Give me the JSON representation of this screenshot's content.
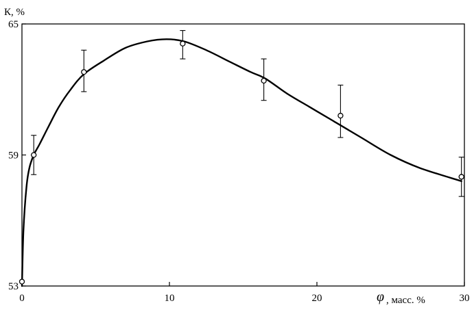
{
  "chart_data": {
    "type": "line",
    "title": "",
    "ylabel": "К, %",
    "xlabel": "φ, масс. %",
    "xlabel_symbol": "φ",
    "xlabel_suffix": ", масс. %",
    "xlim": [
      0,
      30
    ],
    "ylim": [
      53,
      65
    ],
    "x_ticks": [
      0,
      10,
      20,
      30
    ],
    "x_tick_labels": [
      "0",
      "10",
      "20",
      "30"
    ],
    "y_ticks": [
      53,
      59,
      65
    ],
    "y_tick_labels": [
      "53",
      "59",
      "65"
    ],
    "grid": false,
    "legend": "none",
    "series": [
      {
        "role": "fitted-curve",
        "x": [
          0,
          0.1,
          0.3,
          0.5,
          0.8,
          1.2,
          1.8,
          2.5,
          3.3,
          4.2,
          5.5,
          7,
          8.5,
          9.8,
          11,
          12.5,
          14,
          15.5,
          16.5,
          18,
          19.5,
          21,
          21.5,
          23,
          25,
          27,
          29.8
        ],
        "values": [
          53.0,
          55.5,
          57.5,
          58.4,
          59.0,
          59.5,
          60.3,
          61.2,
          62.0,
          62.7,
          63.3,
          63.9,
          64.2,
          64.3,
          64.2,
          63.8,
          63.3,
          62.8,
          62.5,
          61.8,
          61.2,
          60.6,
          60.4,
          59.8,
          59.0,
          58.4,
          57.8
        ]
      },
      {
        "role": "measured-points",
        "x": [
          0,
          0.8,
          4.2,
          10.9,
          16.4,
          21.6,
          29.8
        ],
        "values": [
          53.2,
          59.0,
          62.8,
          64.1,
          62.4,
          60.8,
          58.0
        ],
        "err_low": [
          null,
          58.1,
          61.9,
          63.4,
          61.5,
          59.8,
          57.1
        ],
        "err_high": [
          null,
          59.9,
          63.8,
          64.7,
          63.4,
          62.2,
          58.9
        ]
      }
    ]
  }
}
